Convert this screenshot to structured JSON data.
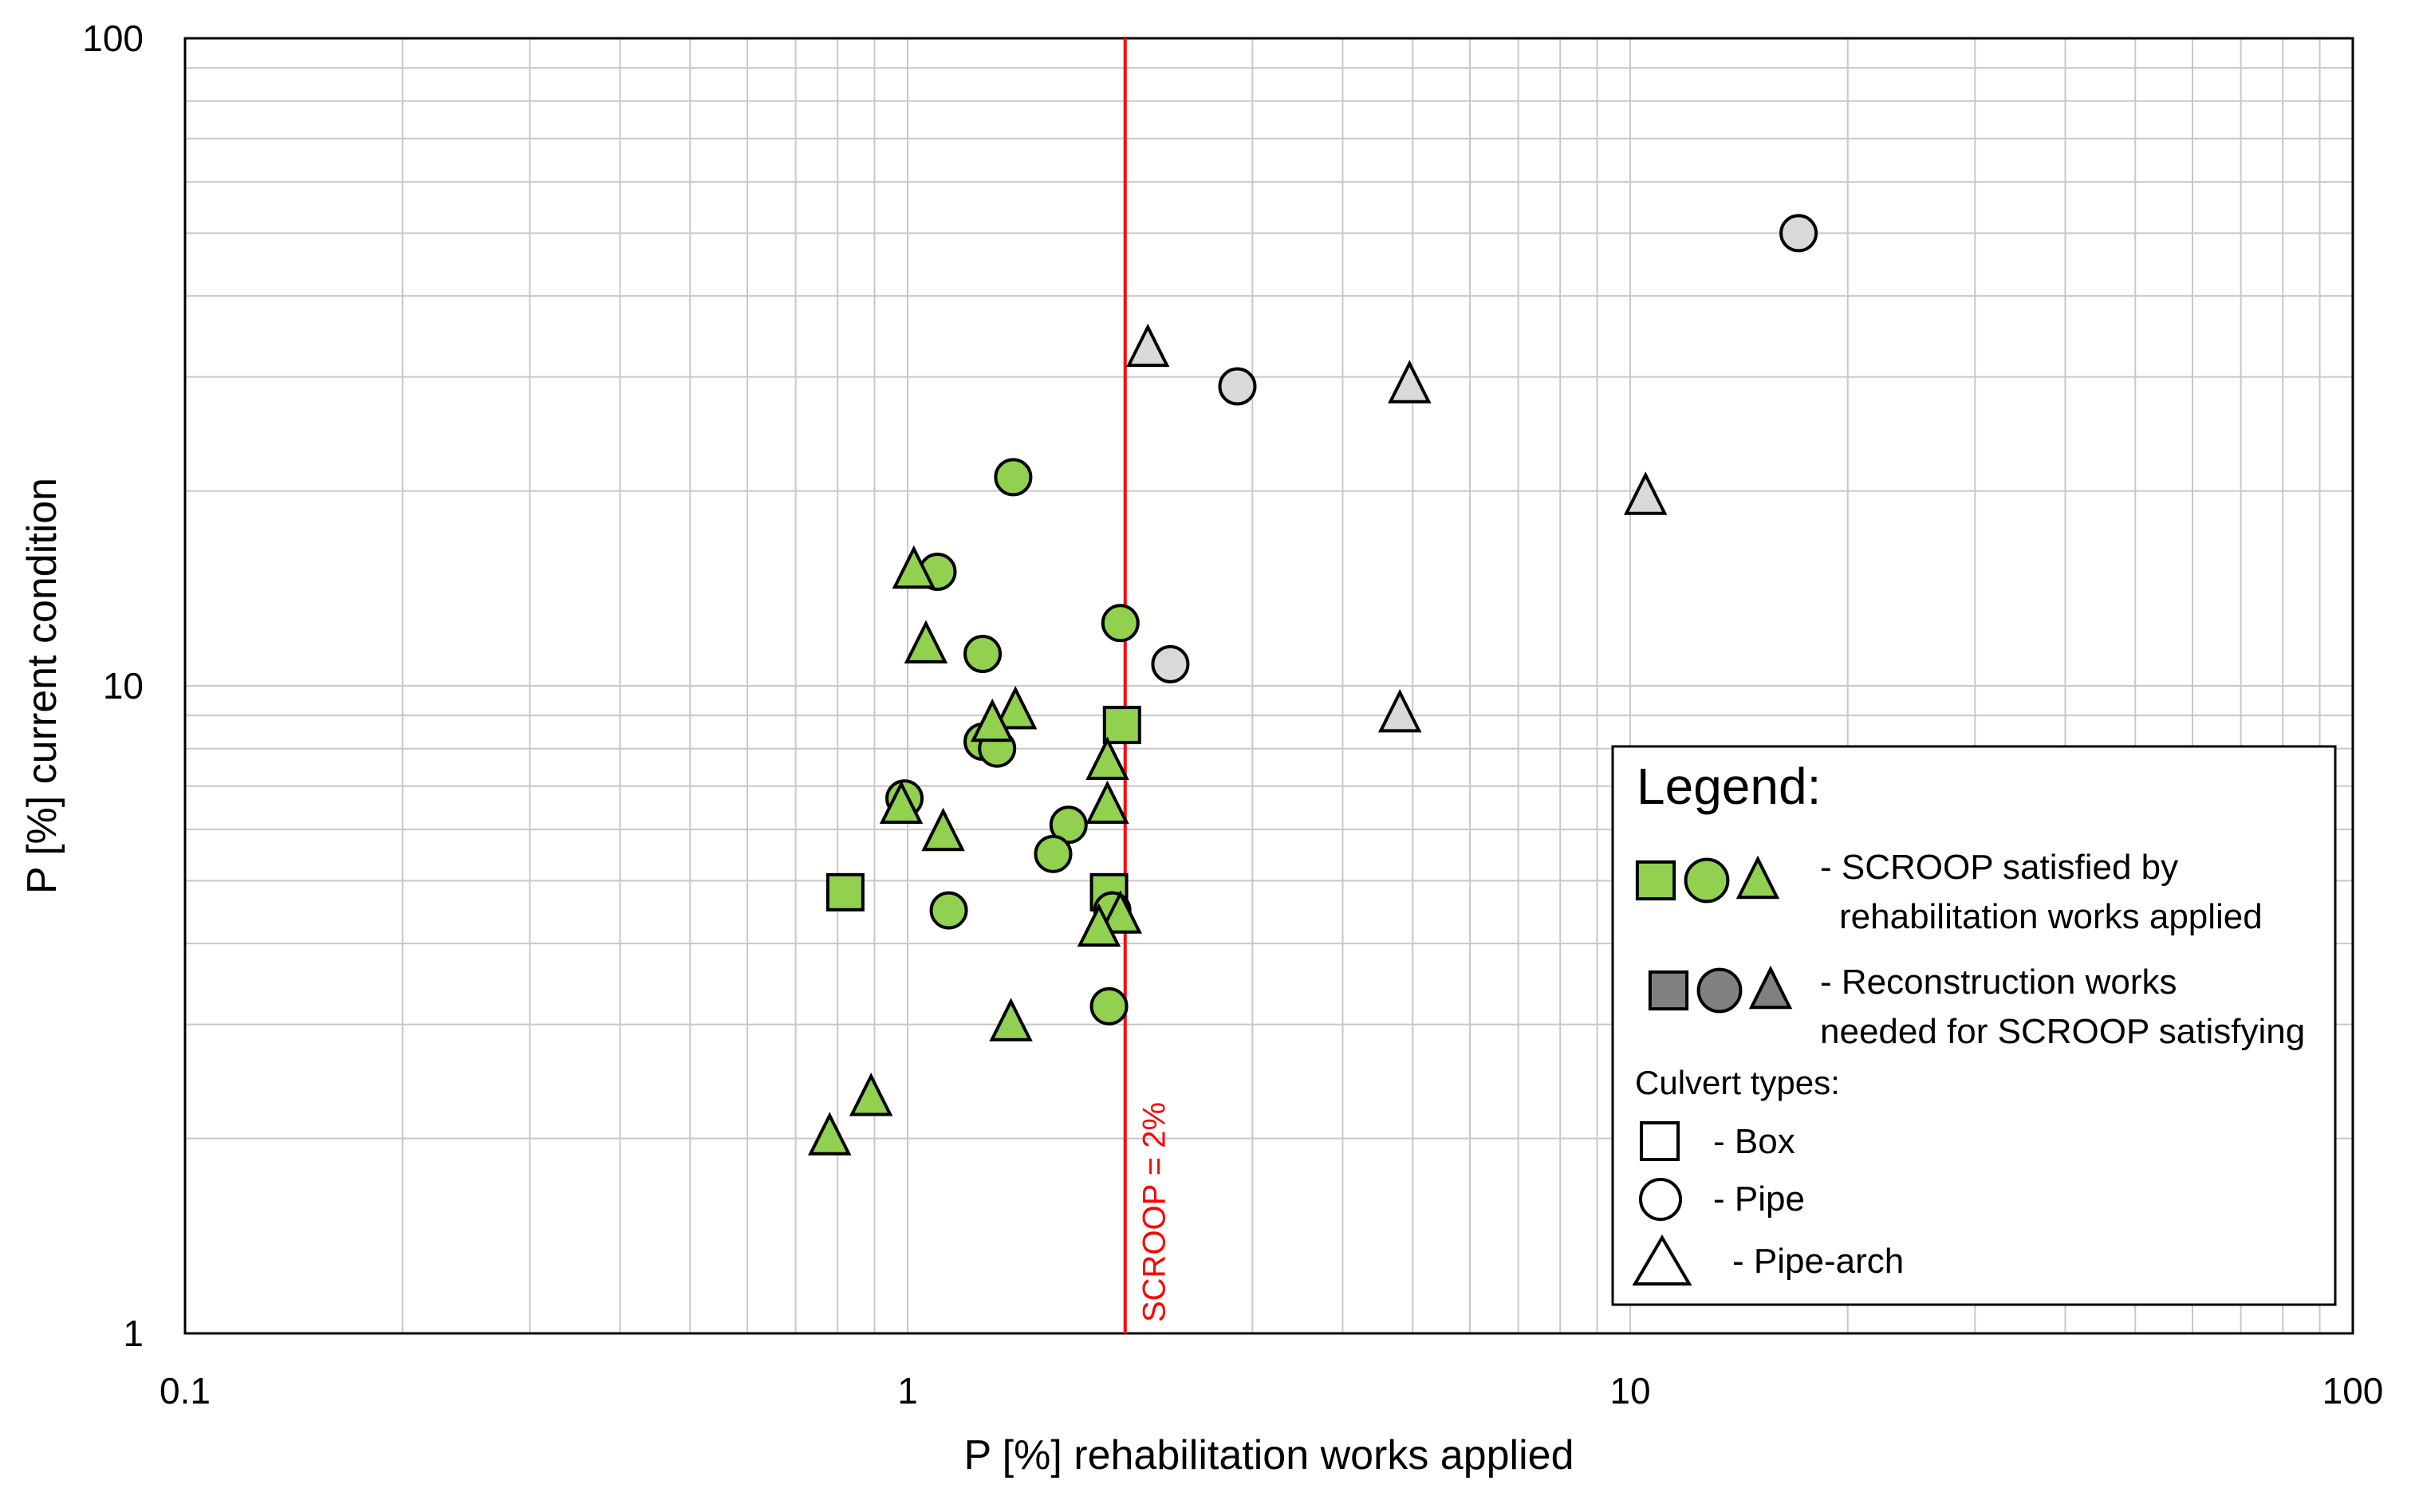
{
  "chart_data": {
    "type": "scatter",
    "xlabel": "P [%] rehabilitation works applied",
    "ylabel": "P  [%] current condition",
    "x_scale": "log",
    "y_scale": "log",
    "xlim": [
      0.1,
      100
    ],
    "ylim": [
      1,
      100
    ],
    "x_ticks": [
      "0.1",
      "1",
      "10",
      "100"
    ],
    "y_ticks": [
      "1",
      "10",
      "100"
    ],
    "grid": true,
    "colors": {
      "satisfied": "#92d050",
      "reconstruction": "#d9d9d9",
      "reference_line": "#ff0000"
    },
    "reference_line": {
      "x": 2,
      "label": "SCROOP = 2%"
    },
    "series": [
      {
        "name": "Box - SCROOP satisfied",
        "marker": "square",
        "color": "#92d050",
        "points": [
          [
            0.82,
            4.8
          ],
          [
            1.98,
            8.7
          ],
          [
            1.9,
            4.8
          ]
        ]
      },
      {
        "name": "Pipe - SCROOP satisfied",
        "marker": "circle",
        "color": "#92d050",
        "points": [
          [
            1.4,
            21
          ],
          [
            1.1,
            15
          ],
          [
            1.97,
            12.5
          ],
          [
            1.27,
            11.2
          ],
          [
            1.27,
            8.2
          ],
          [
            1.33,
            8.0
          ],
          [
            0.99,
            6.7
          ],
          [
            1.67,
            6.1
          ],
          [
            1.59,
            5.5
          ],
          [
            1.14,
            4.5
          ],
          [
            1.92,
            4.5
          ],
          [
            1.9,
            3.2
          ]
        ]
      },
      {
        "name": "Pipe-arch - SCROOP satisfied",
        "marker": "triangle",
        "color": "#92d050",
        "points": [
          [
            1.02,
            15
          ],
          [
            1.06,
            11.5
          ],
          [
            1.41,
            9.1
          ],
          [
            1.31,
            8.7
          ],
          [
            1.89,
            7.6
          ],
          [
            0.98,
            6.5
          ],
          [
            1.12,
            5.9
          ],
          [
            1.89,
            6.5
          ],
          [
            1.97,
            4.4
          ],
          [
            1.84,
            4.2
          ],
          [
            1.39,
            3.0
          ],
          [
            0.89,
            2.3
          ],
          [
            0.78,
            2.0
          ]
        ]
      },
      {
        "name": "Pipe - reconstruction needed",
        "marker": "circle",
        "color": "#d9d9d9",
        "points": [
          [
            17.1,
            50
          ],
          [
            2.86,
            29
          ],
          [
            2.31,
            10.8
          ]
        ]
      },
      {
        "name": "Pipe-arch - reconstruction needed",
        "marker": "triangle",
        "color": "#d9d9d9",
        "points": [
          [
            2.15,
            33
          ],
          [
            4.95,
            29
          ],
          [
            10.5,
            19.5
          ],
          [
            4.8,
            9.0
          ]
        ]
      }
    ]
  },
  "legend": {
    "title": "Legend:",
    "satisfied_line1": "- SCROOP satisfied by",
    "satisfied_line2": "rehabilitation works applied",
    "reconstruction_line1": "- Reconstruction works",
    "reconstruction_line2": "needed for SCROOP satisfying",
    "types_title": "Culvert types:",
    "box_label": "- Box",
    "pipe_label": "- Pipe",
    "pipearch_label": "- Pipe-arch",
    "legend_filled_color": "#808080"
  }
}
